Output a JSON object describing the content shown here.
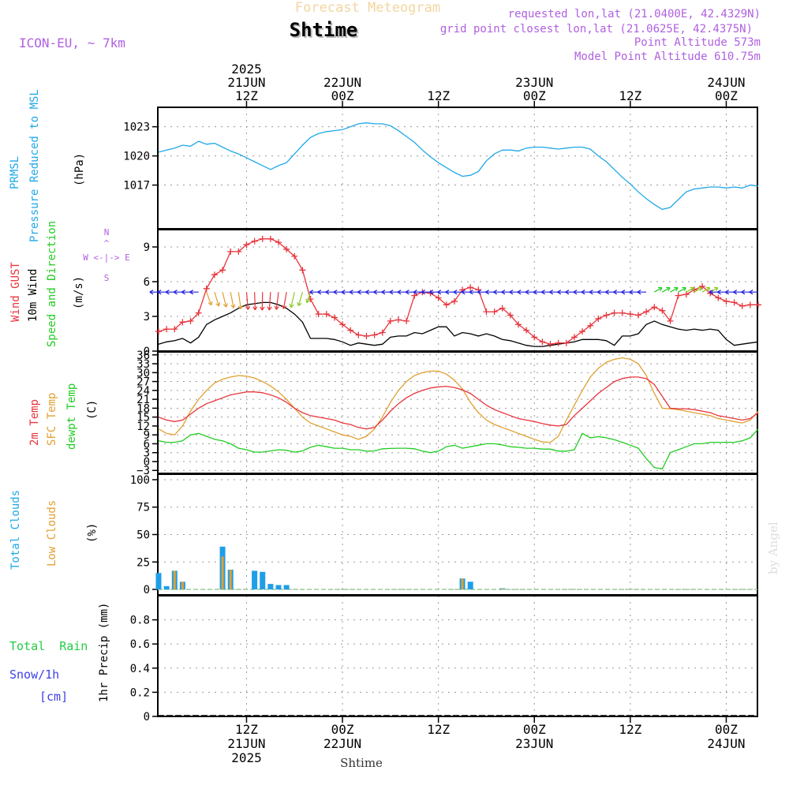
{
  "header": {
    "subtitle": "Forecast Meteogram",
    "location": "Shtime",
    "model": "ICON-EU, ~ 7km",
    "requested": "requested lon,lat (21.0400E, 42.4329N)",
    "gridpoint": "grid point closest lon,lat (21.0625E, 42.4375N)",
    "point_alt": "Point Altitude 573m",
    "model_alt": "Model Point Altitude 610.75m",
    "credit": "by Angel",
    "footer_location": "Shtime"
  },
  "colors": {
    "pressure": "#1fa8e8",
    "gust": "#e8343c",
    "wind": "#000000",
    "temp2m": "#e8343c",
    "sfc": "#e0a030",
    "dewpt": "#22cc22",
    "total_clouds": "#1f9ee8",
    "low_clouds": "#e0a030",
    "purple": "#b060e0",
    "rain_green": "#22cc44",
    "snow_blue": "#4040e8"
  },
  "time_axis": {
    "top_ticks": [
      {
        "hour": 12,
        "l1": "2025",
        "l2": "21JUN",
        "l3": "12Z"
      },
      {
        "hour": 24,
        "l1": "",
        "l2": "22JUN",
        "l3": "00Z"
      },
      {
        "hour": 36,
        "l1": "",
        "l2": "",
        "l3": "12Z"
      },
      {
        "hour": 48,
        "l1": "",
        "l2": "23JUN",
        "l3": "00Z"
      },
      {
        "hour": 60,
        "l1": "",
        "l2": "",
        "l3": "12Z"
      },
      {
        "hour": 72,
        "l1": "",
        "l2": "24JUN",
        "l3": "00Z"
      }
    ],
    "bottom_ticks": [
      {
        "hour": 12,
        "l1": "12Z",
        "l2": "21JUN",
        "l3": "2025"
      },
      {
        "hour": 24,
        "l1": "00Z",
        "l2": "22JUN",
        "l3": ""
      },
      {
        "hour": 36,
        "l1": "12Z",
        "l2": "",
        "l3": ""
      },
      {
        "hour": 48,
        "l1": "00Z",
        "l2": "23JUN",
        "l3": ""
      },
      {
        "hour": 60,
        "l1": "12Z",
        "l2": "",
        "l3": ""
      },
      {
        "hour": 72,
        "l1": "00Z",
        "l2": "24JUN",
        "l3": ""
      }
    ]
  },
  "labels": {
    "p1": [
      "PRMSL",
      "Pressure Reduced to MSL",
      "(hPa)"
    ],
    "p2": [
      "Wind GUST",
      "10m Wind",
      "Speed and Direction",
      "(m/s)"
    ],
    "p2_compass": [
      "N",
      "W <-|-> E",
      "S"
    ],
    "p3": [
      "2m Temp",
      "SFC Temp",
      "dewpt Temp",
      "(C)"
    ],
    "p4": [
      "Total Clouds",
      "Low Clouds",
      "(%)"
    ],
    "p5_left": [
      "Total  Rain",
      "Snow/1h",
      "[cm]"
    ],
    "p5_axis": "1hr Precip (mm)"
  },
  "chart_data": [
    {
      "type": "line",
      "title": "PRMSL Pressure Reduced to MSL",
      "ylabel": "(hPa)",
      "ylim": [
        1012.5,
        1025
      ],
      "yticks": [
        1017,
        1020,
        1023
      ],
      "x_hours": [
        1,
        2,
        3,
        4,
        5,
        6,
        7,
        8,
        9,
        10,
        11,
        12,
        13,
        14,
        15,
        16,
        17,
        18,
        19,
        20,
        21,
        22,
        23,
        24,
        25,
        26,
        27,
        28,
        29,
        30,
        31,
        32,
        33,
        34,
        35,
        36,
        37,
        38,
        39,
        40,
        41,
        42,
        43,
        44,
        45,
        46,
        47,
        48,
        49,
        50,
        51,
        52,
        53,
        54,
        55,
        56,
        57,
        58,
        59,
        60,
        61,
        62,
        63,
        64,
        65,
        66,
        67,
        68,
        69,
        70,
        71,
        72,
        73,
        74,
        75,
        76
      ],
      "series": [
        {
          "name": "PRMSL",
          "values": [
            1020.4,
            1020.6,
            1020.8,
            1021.1,
            1021.0,
            1021.5,
            1021.2,
            1021.3,
            1020.9,
            1020.5,
            1020.2,
            1019.8,
            1019.4,
            1019.0,
            1018.6,
            1019.0,
            1019.3,
            1020.2,
            1021.1,
            1021.9,
            1022.3,
            1022.5,
            1022.6,
            1022.7,
            1023.0,
            1023.3,
            1023.4,
            1023.3,
            1023.3,
            1023.1,
            1022.6,
            1022.0,
            1021.4,
            1020.6,
            1019.9,
            1019.3,
            1018.8,
            1018.3,
            1017.9,
            1018.0,
            1018.4,
            1019.5,
            1020.2,
            1020.6,
            1020.6,
            1020.5,
            1020.8,
            1020.9,
            1020.9,
            1020.8,
            1020.7,
            1020.8,
            1020.9,
            1020.9,
            1020.7,
            1020.0,
            1019.4,
            1018.6,
            1017.8,
            1017.1,
            1016.3,
            1015.6,
            1015.0,
            1014.5,
            1014.7,
            1015.5,
            1016.3,
            1016.6,
            1016.7,
            1016.8,
            1016.8,
            1016.7,
            1016.8,
            1016.7,
            1017.0,
            1016.9
          ]
        }
      ]
    },
    {
      "type": "line",
      "title": "Wind GUST / 10m Wind Speed and Direction",
      "ylabel": "(m/s)",
      "ylim": [
        0,
        10.5
      ],
      "yticks": [
        0,
        3,
        6,
        9
      ],
      "x_hours": [
        1,
        2,
        3,
        4,
        5,
        6,
        7,
        8,
        9,
        10,
        11,
        12,
        13,
        14,
        15,
        16,
        17,
        18,
        19,
        20,
        21,
        22,
        23,
        24,
        25,
        26,
        27,
        28,
        29,
        30,
        31,
        32,
        33,
        34,
        35,
        36,
        37,
        38,
        39,
        40,
        41,
        42,
        43,
        44,
        45,
        46,
        47,
        48,
        49,
        50,
        51,
        52,
        53,
        54,
        55,
        56,
        57,
        58,
        59,
        60,
        61,
        62,
        63,
        64,
        65,
        66,
        67,
        68,
        69,
        70,
        71,
        72,
        73,
        74,
        75,
        76
      ],
      "series": [
        {
          "name": "Wind GUST",
          "values": [
            1.7,
            1.9,
            1.9,
            2.5,
            2.6,
            3.3,
            5.4,
            6.6,
            7.0,
            8.6,
            8.6,
            9.2,
            9.5,
            9.7,
            9.7,
            9.4,
            8.8,
            8.2,
            7.0,
            4.5,
            3.2,
            3.2,
            2.9,
            2.3,
            1.8,
            1.4,
            1.3,
            1.4,
            1.6,
            2.6,
            2.7,
            2.6,
            4.8,
            5.1,
            5.0,
            4.6,
            4.0,
            4.3,
            5.3,
            5.5,
            5.3,
            3.4,
            3.4,
            3.7,
            3.1,
            2.3,
            1.8,
            1.2,
            0.8,
            0.6,
            0.7,
            0.7,
            1.2,
            1.7,
            2.2,
            2.8,
            3.1,
            3.3,
            3.3,
            3.2,
            3.1,
            3.4,
            3.8,
            3.5,
            2.6,
            4.8,
            4.9,
            5.3,
            5.6,
            5.0,
            4.6,
            4.3,
            4.2,
            3.9,
            4.0,
            4.0
          ]
        },
        {
          "name": "10m Wind",
          "values": [
            0.6,
            0.8,
            0.9,
            1.1,
            0.7,
            1.2,
            2.3,
            2.7,
            3.0,
            3.3,
            3.7,
            4.0,
            4.1,
            4.2,
            4.2,
            4.0,
            3.7,
            3.2,
            2.5,
            1.1,
            1.1,
            1.1,
            1.0,
            0.8,
            0.5,
            0.7,
            0.6,
            0.5,
            0.6,
            1.2,
            1.3,
            1.3,
            1.6,
            1.5,
            1.8,
            2.1,
            2.1,
            1.3,
            1.6,
            1.5,
            1.3,
            1.5,
            1.3,
            1.0,
            0.9,
            0.7,
            0.5,
            0.4,
            0.4,
            0.5,
            0.6,
            0.7,
            0.8,
            1.0,
            1.0,
            1.0,
            0.9,
            0.5,
            1.3,
            1.3,
            1.5,
            2.3,
            2.6,
            2.3,
            2.1,
            1.9,
            1.8,
            1.9,
            1.8,
            1.9,
            1.8,
            1.0,
            0.5,
            0.6,
            0.7,
            0.8
          ]
        }
      ],
      "direction_compass": "N up, E right"
    },
    {
      "type": "line",
      "title": "2m Temp / SFC Temp / dewpt Temp",
      "ylabel": "(C)",
      "ylim": [
        -4,
        37
      ],
      "yticks": [
        -3,
        0,
        3,
        6,
        9,
        12,
        15,
        18,
        21,
        24,
        27,
        30,
        33,
        36
      ],
      "x_hours": [
        1,
        2,
        3,
        4,
        5,
        6,
        7,
        8,
        9,
        10,
        11,
        12,
        13,
        14,
        15,
        16,
        17,
        18,
        19,
        20,
        21,
        22,
        23,
        24,
        25,
        26,
        27,
        28,
        29,
        30,
        31,
        32,
        33,
        34,
        35,
        36,
        37,
        38,
        39,
        40,
        41,
        42,
        43,
        44,
        45,
        46,
        47,
        48,
        49,
        50,
        51,
        52,
        53,
        54,
        55,
        56,
        57,
        58,
        59,
        60,
        61,
        62,
        63,
        64,
        65,
        66,
        67,
        68,
        69,
        70,
        71,
        72,
        73,
        74,
        75,
        76
      ],
      "series": [
        {
          "name": "2m Temp",
          "values": [
            15,
            14,
            13.5,
            14,
            16,
            18,
            19.5,
            20.5,
            21.5,
            22.5,
            23,
            23.5,
            23.5,
            23.2,
            22.5,
            21.5,
            20,
            18,
            16.5,
            15.5,
            15,
            14.5,
            14,
            13,
            12.5,
            11.5,
            11.0,
            11.5,
            14,
            17,
            19.5,
            21.5,
            23,
            24,
            24.8,
            25.2,
            25.4,
            25,
            24.2,
            23,
            21,
            19,
            17.5,
            16.5,
            15.5,
            14.5,
            14,
            13.5,
            12.8,
            12.3,
            12,
            12.5,
            15.5,
            18,
            20.5,
            23,
            25,
            27,
            28,
            28.5,
            28.5,
            28,
            26,
            22,
            18,
            17.8,
            17.8,
            17.5,
            17,
            16.5,
            15.5,
            15,
            14.5,
            14,
            14.5,
            16.5
          ]
        },
        {
          "name": "SFC Temp",
          "values": [
            11,
            9.5,
            9,
            12,
            17,
            21,
            24,
            26.5,
            27.8,
            28.5,
            29,
            28.8,
            28.2,
            27,
            25.5,
            23.5,
            21,
            18,
            15,
            13,
            12,
            11,
            10,
            9,
            8.5,
            7.5,
            8.5,
            11,
            15,
            20,
            24,
            27,
            29,
            30,
            30.5,
            30.5,
            29.5,
            27.5,
            24.5,
            20,
            16.5,
            14,
            12.5,
            11.5,
            10.5,
            9.5,
            8.5,
            7.5,
            6.6,
            6.5,
            8.5,
            14,
            19,
            24,
            28.5,
            31.5,
            33.5,
            34.5,
            35,
            34.5,
            33,
            29,
            23,
            18,
            17.8,
            17.5,
            17,
            16.5,
            16,
            15.5,
            14.5,
            14,
            13.5,
            13,
            14,
            17
          ]
        },
        {
          "name": "dewpt Temp",
          "values": [
            7,
            6.5,
            6.5,
            7,
            9,
            9.5,
            8.5,
            7.5,
            7,
            6,
            4.5,
            4,
            3.2,
            3.2,
            3.6,
            4,
            3.8,
            3.2,
            3.6,
            4.8,
            5.5,
            5,
            4.5,
            4.5,
            4,
            4,
            3.5,
            3.6,
            4.3,
            4.4,
            4.5,
            4.5,
            4.3,
            3.5,
            3.0,
            3.5,
            5,
            5.5,
            4.5,
            5,
            5.5,
            6,
            6,
            5.6,
            5,
            4.8,
            4.5,
            4.5,
            4.2,
            4.2,
            3.5,
            3.5,
            4,
            9.5,
            8,
            8.4,
            8,
            7.4,
            6.5,
            5.5,
            4.5,
            1,
            -2,
            -2.5,
            3,
            4,
            5,
            6,
            6,
            6.5,
            6.5,
            6.5,
            6.5,
            7,
            8,
            11
          ]
        }
      ]
    },
    {
      "type": "bar",
      "title": "Total Clouds / Low Clouds",
      "ylabel": "(%)",
      "ylim": [
        -5,
        105
      ],
      "yticks": [
        0,
        25,
        50,
        75,
        100
      ],
      "x_hours": [
        1,
        2,
        3,
        4,
        5,
        6,
        7,
        8,
        9,
        10,
        11,
        12,
        13,
        14,
        15,
        16,
        17,
        18,
        19,
        20,
        21,
        22,
        23,
        24,
        25,
        26,
        27,
        28,
        29,
        30,
        31,
        32,
        33,
        34,
        35,
        36,
        37,
        38,
        39,
        40,
        41,
        42,
        43,
        44,
        45,
        46,
        47,
        48,
        49,
        50,
        51,
        52,
        53,
        54,
        55,
        56,
        57,
        58,
        59,
        60,
        61,
        62,
        63,
        64,
        65,
        66,
        67,
        68,
        69,
        70,
        71,
        72,
        73,
        74,
        75,
        76
      ],
      "series": [
        {
          "name": "Total Clouds",
          "values": [
            15,
            3,
            17,
            7,
            0,
            0,
            0,
            0,
            39,
            18,
            0,
            0,
            17,
            16,
            5,
            4,
            4,
            0,
            0,
            0,
            0,
            0,
            0,
            0,
            0,
            0,
            0,
            0,
            0,
            0,
            0,
            0,
            0,
            0,
            0,
            0,
            0,
            0,
            10,
            7,
            0,
            0,
            0,
            1,
            0,
            0,
            0,
            0,
            0,
            0,
            0,
            0,
            0,
            0,
            0,
            0,
            0,
            0,
            0,
            0,
            0,
            0,
            0,
            0,
            0,
            0,
            0,
            0,
            0,
            0,
            0,
            0,
            0,
            0,
            0,
            0
          ]
        },
        {
          "name": "Low Clouds",
          "values": [
            0,
            0,
            17,
            7,
            0,
            0,
            0,
            0,
            30,
            18,
            0,
            0,
            0,
            0,
            0,
            0,
            0,
            0,
            0,
            0,
            0,
            0,
            0,
            0,
            0,
            0,
            0,
            0,
            0,
            0,
            0,
            0,
            0,
            0,
            0,
            0,
            0,
            0,
            10,
            0,
            0,
            0,
            0,
            1,
            0,
            0,
            0,
            0,
            0,
            0,
            0,
            0,
            0,
            0,
            0,
            0,
            0,
            0,
            0,
            0,
            0,
            0,
            0,
            0,
            0,
            0,
            0,
            0,
            0,
            0,
            0,
            0,
            0,
            0,
            0,
            0
          ]
        }
      ]
    },
    {
      "type": "bar",
      "title": "1hr Precip",
      "ylabel": "1hr Precip (mm)",
      "ylim": [
        0,
        1.0
      ],
      "yticks": [
        0,
        0.2,
        0.4,
        0.6,
        0.8
      ],
      "series": [
        {
          "name": "Total Rain",
          "values": []
        },
        {
          "name": "Snow/1h",
          "values": []
        }
      ]
    }
  ]
}
